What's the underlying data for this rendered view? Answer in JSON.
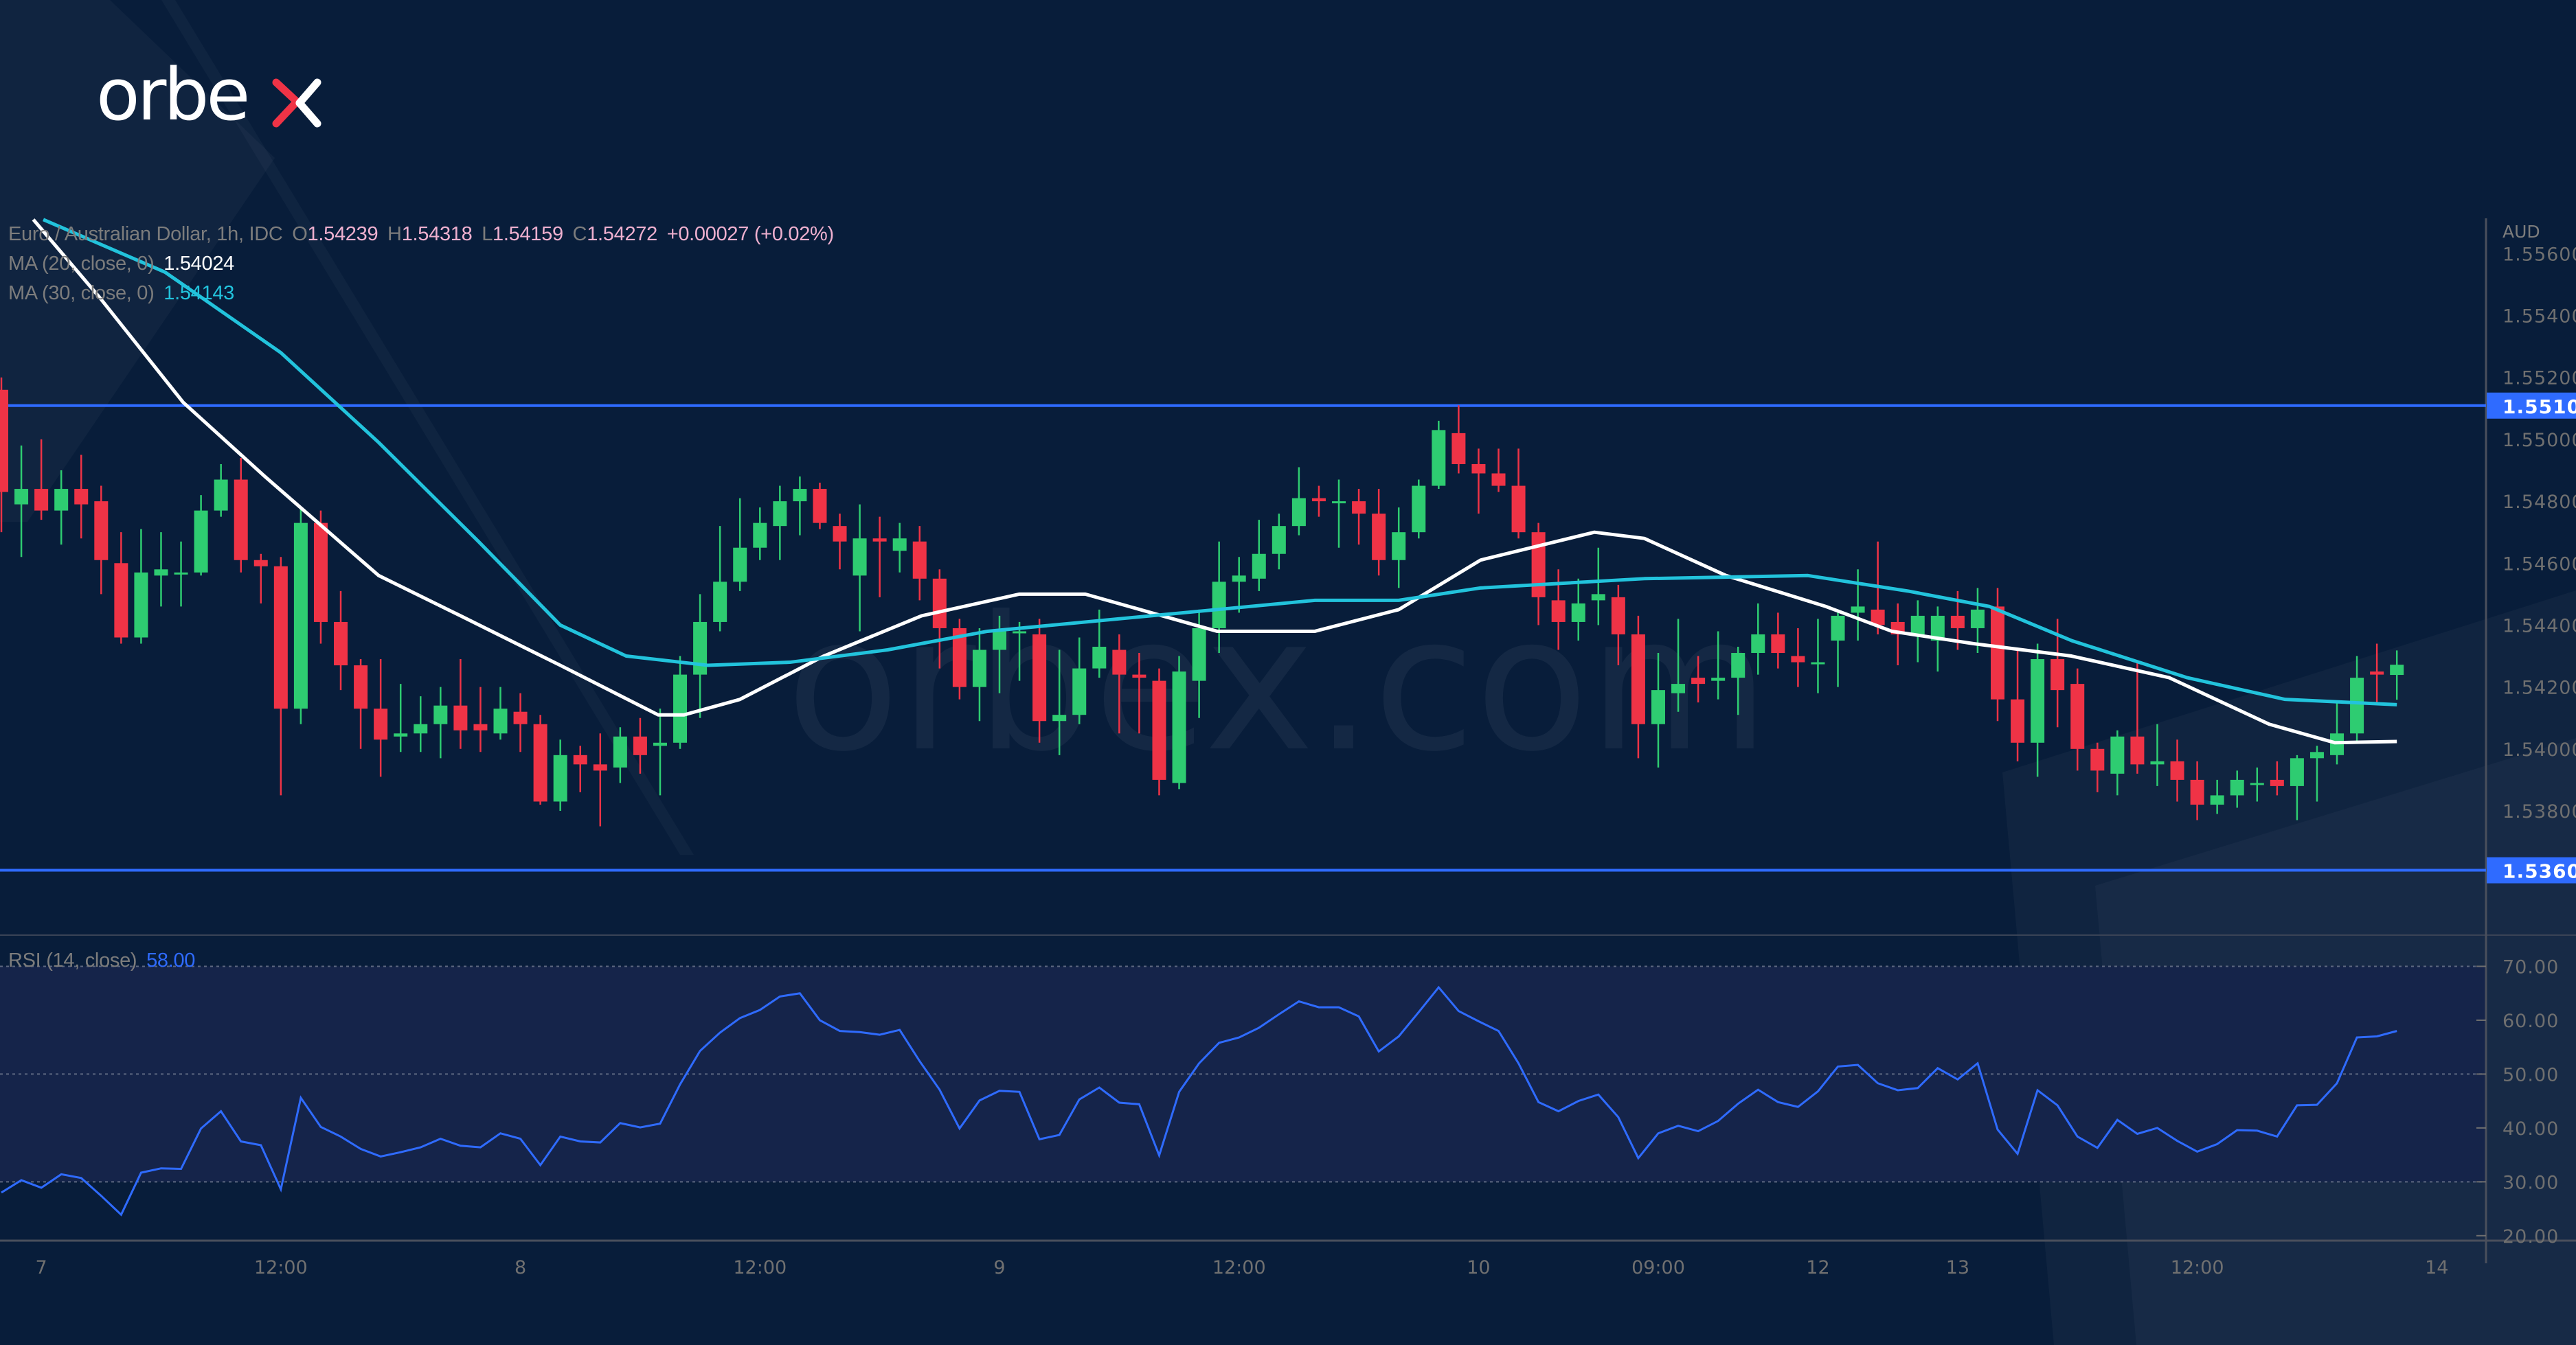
{
  "brand": {
    "logo_text": "orbex",
    "watermark": "orbex.com"
  },
  "legend": {
    "symbol": "Euro / Australian Dollar, 1h, IDC",
    "o_label": "O",
    "o_value": "1.54239",
    "h_label": "H",
    "h_value": "1.54318",
    "l_label": "L",
    "l_value": "1.54159",
    "c_label": "C",
    "c_value": "1.54272",
    "change": "+0.00027 (+0.02%)",
    "ma20_label": "MA (20, close, 0)",
    "ma20_value": "1.54024",
    "ma30_label": "MA (30, close, 0)",
    "ma30_value": "1.54143",
    "rsi_label": "RSI (14, close)",
    "rsi_value": "58.00"
  },
  "colors": {
    "background": "#081d3a",
    "up": "#2ecc71",
    "down": "#ef3346",
    "ma20": "#ffffff",
    "ma30": "#22c3dc",
    "rsi": "#2f6bff",
    "level": "#2f6bff"
  },
  "chart_data": {
    "type": "candlestick",
    "currency_label": "AUD",
    "ylim": [
      1.5372,
      1.5568
    ],
    "y_ticks": [
      "1.55600",
      "1.55400",
      "1.55200",
      "1.55000",
      "1.54800",
      "1.54600",
      "1.54400",
      "1.54200",
      "1.54000",
      "1.53800"
    ],
    "x_ticks": [
      {
        "label": "7",
        "bar": 2
      },
      {
        "label": "12:00",
        "bar": 14
      },
      {
        "label": "8",
        "bar": 26
      },
      {
        "label": "12:00",
        "bar": 38
      },
      {
        "label": "9",
        "bar": 50
      },
      {
        "label": "12:00",
        "bar": 62
      },
      {
        "label": "10",
        "bar": 74
      },
      {
        "label": "09:00",
        "bar": 83
      },
      {
        "label": "12",
        "bar": 91
      },
      {
        "label": "13",
        "bar": 98
      },
      {
        "label": "12:00",
        "bar": 110
      },
      {
        "label": "14",
        "bar": 122
      }
    ],
    "levels": [
      {
        "value": 1.55109,
        "label": "1.55109"
      },
      {
        "value": 1.53608,
        "label": "1.53608"
      }
    ],
    "candles_ohlc": [
      [
        1.5516,
        1.552,
        1.547,
        1.5483
      ],
      [
        1.5479,
        1.5498,
        1.5462,
        1.5484
      ],
      [
        1.5484,
        1.55,
        1.5474,
        1.5477
      ],
      [
        1.5477,
        1.549,
        1.5466,
        1.5484
      ],
      [
        1.5484,
        1.5495,
        1.5468,
        1.5479
      ],
      [
        1.548,
        1.5485,
        1.545,
        1.5461
      ],
      [
        1.546,
        1.547,
        1.5434,
        1.5436
      ],
      [
        1.5436,
        1.5471,
        1.5434,
        1.5457
      ],
      [
        1.5456,
        1.547,
        1.5446,
        1.5458
      ],
      [
        1.5457,
        1.5467,
        1.5446,
        1.5457
      ],
      [
        1.5457,
        1.5482,
        1.5456,
        1.5477
      ],
      [
        1.5477,
        1.5492,
        1.5475,
        1.5487
      ],
      [
        1.5487,
        1.5494,
        1.5457,
        1.5461
      ],
      [
        1.5461,
        1.5463,
        1.5447,
        1.5459
      ],
      [
        1.5459,
        1.5462,
        1.5385,
        1.5413
      ],
      [
        1.5413,
        1.5478,
        1.5408,
        1.5473
      ],
      [
        1.5473,
        1.5477,
        1.5434,
        1.5441
      ],
      [
        1.5441,
        1.5451,
        1.5419,
        1.5427
      ],
      [
        1.5427,
        1.5429,
        1.54,
        1.5413
      ],
      [
        1.5413,
        1.5429,
        1.5391,
        1.5403
      ],
      [
        1.5404,
        1.5421,
        1.5399,
        1.5405
      ],
      [
        1.5405,
        1.5417,
        1.5399,
        1.5408
      ],
      [
        1.5408,
        1.542,
        1.5397,
        1.5414
      ],
      [
        1.5414,
        1.5429,
        1.54,
        1.5406
      ],
      [
        1.5408,
        1.542,
        1.5399,
        1.5406
      ],
      [
        1.5405,
        1.542,
        1.5403,
        1.5413
      ],
      [
        1.5412,
        1.5418,
        1.5399,
        1.5408
      ],
      [
        1.5408,
        1.5411,
        1.5382,
        1.5383
      ],
      [
        1.5383,
        1.5403,
        1.538,
        1.5398
      ],
      [
        1.5398,
        1.5401,
        1.5386,
        1.5395
      ],
      [
        1.5395,
        1.5405,
        1.5375,
        1.5393
      ],
      [
        1.5394,
        1.5407,
        1.5389,
        1.5404
      ],
      [
        1.5404,
        1.541,
        1.5392,
        1.5398
      ],
      [
        1.5401,
        1.5413,
        1.5385,
        1.5402
      ],
      [
        1.5402,
        1.543,
        1.54,
        1.5424
      ],
      [
        1.5424,
        1.545,
        1.541,
        1.5441
      ],
      [
        1.5441,
        1.5472,
        1.5438,
        1.5454
      ],
      [
        1.5454,
        1.5481,
        1.5451,
        1.5465
      ],
      [
        1.5465,
        1.5478,
        1.5461,
        1.5473
      ],
      [
        1.5472,
        1.5485,
        1.5461,
        1.548
      ],
      [
        1.548,
        1.5488,
        1.5469,
        1.5484
      ],
      [
        1.5484,
        1.5486,
        1.5471,
        1.5473
      ],
      [
        1.5472,
        1.5476,
        1.5458,
        1.5467
      ],
      [
        1.5456,
        1.5479,
        1.5438,
        1.5468
      ],
      [
        1.5468,
        1.5475,
        1.5449,
        1.5467
      ],
      [
        1.5464,
        1.5473,
        1.5457,
        1.5468
      ],
      [
        1.5467,
        1.5472,
        1.5448,
        1.5455
      ],
      [
        1.5455,
        1.5458,
        1.5426,
        1.5439
      ],
      [
        1.5439,
        1.5442,
        1.5416,
        1.542
      ],
      [
        1.542,
        1.5439,
        1.5409,
        1.5432
      ],
      [
        1.5432,
        1.5443,
        1.5418,
        1.5438
      ],
      [
        1.5438,
        1.5441,
        1.5422,
        1.5438
      ],
      [
        1.5437,
        1.5442,
        1.5402,
        1.5409
      ],
      [
        1.5409,
        1.5432,
        1.5398,
        1.5411
      ],
      [
        1.5411,
        1.5436,
        1.5408,
        1.5426
      ],
      [
        1.5426,
        1.5445,
        1.5423,
        1.5433
      ],
      [
        1.5432,
        1.5437,
        1.5405,
        1.5424
      ],
      [
        1.5424,
        1.5431,
        1.5405,
        1.5423
      ],
      [
        1.5422,
        1.5426,
        1.5385,
        1.539
      ],
      [
        1.5389,
        1.543,
        1.5387,
        1.5425
      ],
      [
        1.5422,
        1.5445,
        1.541,
        1.5439
      ],
      [
        1.5439,
        1.5467,
        1.5431,
        1.5454
      ],
      [
        1.5454,
        1.5462,
        1.5444,
        1.5456
      ],
      [
        1.5455,
        1.5474,
        1.5451,
        1.5463
      ],
      [
        1.5463,
        1.5476,
        1.5458,
        1.5472
      ],
      [
        1.5472,
        1.5491,
        1.5469,
        1.5481
      ],
      [
        1.5481,
        1.5485,
        1.5475,
        1.548
      ],
      [
        1.548,
        1.5487,
        1.5465,
        1.548
      ],
      [
        1.548,
        1.5484,
        1.5466,
        1.5476
      ],
      [
        1.5476,
        1.5484,
        1.5456,
        1.5461
      ],
      [
        1.5461,
        1.5478,
        1.5452,
        1.547
      ],
      [
        1.547,
        1.5487,
        1.5468,
        1.5485
      ],
      [
        1.5485,
        1.5506,
        1.5484,
        1.5503
      ],
      [
        1.5502,
        1.5511,
        1.5489,
        1.5492
      ],
      [
        1.5492,
        1.5497,
        1.5476,
        1.5489
      ],
      [
        1.5489,
        1.5497,
        1.5483,
        1.5485
      ],
      [
        1.5485,
        1.5497,
        1.5468,
        1.547
      ],
      [
        1.547,
        1.5473,
        1.544,
        1.5449
      ],
      [
        1.5448,
        1.5458,
        1.5432,
        1.5441
      ],
      [
        1.5441,
        1.5455,
        1.5435,
        1.5447
      ],
      [
        1.5448,
        1.5465,
        1.544,
        1.545
      ],
      [
        1.5449,
        1.5453,
        1.5427,
        1.5437
      ],
      [
        1.5437,
        1.5443,
        1.5397,
        1.5408
      ],
      [
        1.5408,
        1.5431,
        1.5394,
        1.5419
      ],
      [
        1.5418,
        1.5442,
        1.5412,
        1.5421
      ],
      [
        1.5423,
        1.543,
        1.5415,
        1.5421
      ],
      [
        1.5422,
        1.5438,
        1.5416,
        1.5423
      ],
      [
        1.5423,
        1.5433,
        1.5411,
        1.5431
      ],
      [
        1.5431,
        1.5447,
        1.5424,
        1.5437
      ],
      [
        1.5437,
        1.5444,
        1.5426,
        1.5431
      ],
      [
        1.543,
        1.5439,
        1.542,
        1.5428
      ],
      [
        1.5428,
        1.5442,
        1.5418,
        1.5428
      ],
      [
        1.5435,
        1.5445,
        1.542,
        1.5443
      ],
      [
        1.5444,
        1.5458,
        1.5435,
        1.5446
      ],
      [
        1.5445,
        1.5467,
        1.5437,
        1.544
      ],
      [
        1.5441,
        1.5447,
        1.5427,
        1.5437
      ],
      [
        1.5437,
        1.5448,
        1.5428,
        1.5443
      ],
      [
        1.5435,
        1.5446,
        1.5425,
        1.5443
      ],
      [
        1.5443,
        1.5451,
        1.5432,
        1.5439
      ],
      [
        1.5439,
        1.5452,
        1.5431,
        1.5445
      ],
      [
        1.5446,
        1.5452,
        1.5409,
        1.5416
      ],
      [
        1.5416,
        1.5432,
        1.5396,
        1.5402
      ],
      [
        1.5402,
        1.5434,
        1.5391,
        1.5429
      ],
      [
        1.5429,
        1.5442,
        1.5407,
        1.5419
      ],
      [
        1.5421,
        1.5426,
        1.5393,
        1.54
      ],
      [
        1.54,
        1.5402,
        1.5386,
        1.5393
      ],
      [
        1.5392,
        1.5406,
        1.5385,
        1.5404
      ],
      [
        1.5404,
        1.5428,
        1.5392,
        1.5395
      ],
      [
        1.5395,
        1.5408,
        1.5388,
        1.5396
      ],
      [
        1.5396,
        1.5403,
        1.5383,
        1.539
      ],
      [
        1.539,
        1.5396,
        1.5377,
        1.5382
      ],
      [
        1.5382,
        1.539,
        1.5379,
        1.5385
      ],
      [
        1.5385,
        1.5393,
        1.5381,
        1.539
      ],
      [
        1.5389,
        1.5394,
        1.5383,
        1.5389
      ],
      [
        1.539,
        1.5396,
        1.5385,
        1.5388
      ],
      [
        1.5388,
        1.5398,
        1.5377,
        1.5397
      ],
      [
        1.5397,
        1.5401,
        1.5383,
        1.5399
      ],
      [
        1.5398,
        1.5415,
        1.5395,
        1.5405
      ],
      [
        1.5405,
        1.543,
        1.5402,
        1.5423
      ],
      [
        1.5425,
        1.5434,
        1.5415,
        1.5424
      ],
      [
        1.54239,
        1.54318,
        1.54159,
        1.54272
      ]
    ],
    "ma20": [
      [
        1.6,
        1.5571
      ],
      [
        4.9,
        1.5546
      ],
      [
        9.1,
        1.5512
      ],
      [
        13.2,
        1.5488
      ],
      [
        18.9,
        1.5456
      ],
      [
        23,
        1.5443
      ],
      [
        28,
        1.5427
      ],
      [
        32.9,
        1.5411
      ],
      [
        34.2,
        1.5411
      ],
      [
        37,
        1.5416
      ],
      [
        41.2,
        1.543
      ],
      [
        46.1,
        1.5443
      ],
      [
        51,
        1.545
      ],
      [
        54.3,
        1.545
      ],
      [
        57.6,
        1.5444
      ],
      [
        60.9,
        1.5438
      ],
      [
        65.8,
        1.5438
      ],
      [
        70,
        1.5445
      ],
      [
        74.1,
        1.5461
      ],
      [
        79.8,
        1.547
      ],
      [
        82.3,
        1.5468
      ],
      [
        86.4,
        1.5456
      ],
      [
        91.4,
        1.5446
      ],
      [
        94.7,
        1.5438
      ],
      [
        98.8,
        1.5434
      ],
      [
        103.7,
        1.543
      ],
      [
        108.6,
        1.5423
      ],
      [
        113.6,
        1.5408
      ],
      [
        116.9,
        1.5402
      ],
      [
        120,
        1.54024
      ]
    ],
    "ma30": [
      [
        2.1,
        1.5571
      ],
      [
        8.2,
        1.5554
      ],
      [
        14,
        1.5528
      ],
      [
        18.9,
        1.5499
      ],
      [
        23.9,
        1.5467
      ],
      [
        28,
        1.544
      ],
      [
        31.3,
        1.543
      ],
      [
        35.4,
        1.5427
      ],
      [
        39.5,
        1.5428
      ],
      [
        44.4,
        1.5432
      ],
      [
        49.4,
        1.5438
      ],
      [
        57.6,
        1.5443
      ],
      [
        65.8,
        1.5448
      ],
      [
        70,
        1.5448
      ],
      [
        74.1,
        1.5452
      ],
      [
        82.3,
        1.5455
      ],
      [
        90.5,
        1.5456
      ],
      [
        95.5,
        1.5451
      ],
      [
        99.6,
        1.5446
      ],
      [
        103.7,
        1.5435
      ],
      [
        109.5,
        1.5423
      ],
      [
        114.4,
        1.5416
      ],
      [
        120,
        1.54143
      ]
    ],
    "rsi": {
      "ylim": [
        20,
        75
      ],
      "ticks": [
        "70.00",
        "60.00",
        "50.00",
        "40.00",
        "30.00",
        "20.00"
      ],
      "band": [
        30,
        70
      ],
      "values": [
        28.0,
        30.3,
        28.9,
        31.4,
        30.7,
        27.4,
        23.9,
        31.7,
        32.5,
        32.4,
        39.9,
        43.1,
        37.5,
        36.8,
        28.6,
        45.6,
        40.2,
        38.4,
        36.1,
        34.7,
        35.5,
        36.4,
        38.0,
        36.7,
        36.4,
        39.0,
        38.0,
        33.1,
        38.4,
        37.5,
        37.3,
        40.9,
        40.1,
        40.8,
        48.1,
        54.3,
        57.7,
        60.4,
        61.9,
        64.4,
        65.0,
        60.0,
        58.0,
        57.8,
        57.3,
        58.2,
        52.4,
        47.1,
        39.9,
        45.1,
        46.9,
        46.7,
        37.9,
        38.7,
        45.3,
        47.5,
        44.7,
        44.4,
        34.9,
        46.7,
        52.0,
        55.8,
        56.8,
        58.6,
        61.1,
        63.5,
        62.4,
        62.4,
        60.7,
        54.2,
        57.0,
        61.5,
        66.1,
        61.7,
        59.8,
        58.0,
        52.0,
        44.8,
        43.1,
        45.0,
        46.2,
        42.0,
        34.4,
        39.0,
        40.4,
        39.4,
        41.3,
        44.5,
        47.1,
        44.8,
        43.9,
        46.8,
        51.4,
        51.7,
        48.3,
        47.0,
        47.4,
        51.1,
        49.0,
        52.0,
        39.7,
        35.2,
        47.0,
        44.2,
        38.4,
        36.3,
        41.5,
        38.9,
        40.0,
        37.6,
        35.6,
        37.0,
        39.6,
        39.5,
        38.4,
        44.2,
        44.3,
        48.3,
        56.8,
        57.0,
        58.0
      ]
    }
  }
}
